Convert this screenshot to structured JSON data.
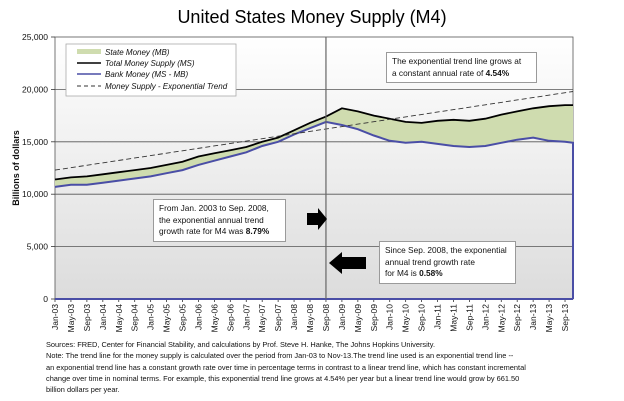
{
  "chart_data": {
    "type": "area",
    "title": "United States Money Supply (M4)",
    "xlabel": "",
    "ylabel": "Billions of dollars",
    "ylim": [
      0,
      25000
    ],
    "yticks": [
      0,
      5000,
      10000,
      15000,
      20000,
      25000
    ],
    "ytick_labels": [
      "0",
      "5,000",
      "10,000",
      "15,000",
      "20,000",
      "25,000"
    ],
    "xtick_labels": [
      "Jan-03",
      "May-03",
      "Sep-03",
      "Jan-04",
      "May-04",
      "Sep-04",
      "Jan-05",
      "May-05",
      "Sep-05",
      "Jan-06",
      "May-06",
      "Sep-06",
      "Jan-07",
      "May-07",
      "Sep-07",
      "Jan-08",
      "May-08",
      "Sep-08",
      "Jan-09",
      "May-09",
      "Sep-09",
      "Jan-10",
      "May-10",
      "Sep-10",
      "Jan-11",
      "May-11",
      "Sep-11",
      "Jan-12",
      "May-12",
      "Sep-12",
      "Jan-13",
      "May-13",
      "Sep-13"
    ],
    "x_range_months": [
      0,
      130
    ],
    "grid": "horizontal",
    "legend_position": "top-left",
    "x_months": [
      0,
      4,
      8,
      12,
      16,
      20,
      24,
      28,
      32,
      36,
      40,
      44,
      48,
      52,
      56,
      60,
      64,
      68,
      72,
      76,
      80,
      84,
      88,
      92,
      96,
      100,
      104,
      108,
      112,
      116,
      120,
      124,
      128,
      130
    ],
    "series": [
      {
        "name": "Total Money Supply (MS)",
        "color": "#000000",
        "style": "solid",
        "values": [
          11400,
          11600,
          11700,
          11900,
          12100,
          12300,
          12500,
          12800,
          13100,
          13600,
          13900,
          14200,
          14500,
          15000,
          15400,
          16100,
          16800,
          17400,
          18200,
          17900,
          17500,
          17200,
          16900,
          16800,
          17000,
          17100,
          17000,
          17200,
          17600,
          17900,
          18200,
          18400,
          18500,
          18500
        ]
      },
      {
        "name": "Bank Money (MS - MB)",
        "color": "#4a4ea6",
        "style": "solid",
        "values": [
          10700,
          10900,
          10900,
          11100,
          11300,
          11500,
          11700,
          12000,
          12300,
          12800,
          13200,
          13600,
          14000,
          14600,
          15000,
          15700,
          16300,
          16900,
          16600,
          16200,
          15600,
          15100,
          14900,
          15000,
          14800,
          14600,
          14500,
          14600,
          14900,
          15200,
          15400,
          15100,
          15000,
          14900
        ]
      },
      {
        "name": "State Money (MB)",
        "color": "#cfdcaf",
        "style": "fill-between"
      },
      {
        "name": "Money Supply - Exponential Trend",
        "color": "#333333",
        "style": "dashed",
        "start": 12300,
        "end": 19800
      }
    ],
    "vertical_marker": {
      "x_month": 68,
      "label": "Sep-08"
    },
    "annotations": [
      {
        "id": "trend",
        "text": "The exponential trend line grows at a constant annual rate of ",
        "bold": "4.54%"
      },
      {
        "id": "pre",
        "text": "From Jan. 2003 to Sep. 2008, the exponential annual trend growth rate for M4 was ",
        "bold": "8.79%"
      },
      {
        "id": "post",
        "text": "Since Sep. 2008, the exponential annual trend growth rate for M4 is ",
        "bold": "0.58%"
      }
    ]
  },
  "annotations": {
    "trend_line1": "The exponential trend line grows at",
    "trend_line2": "a constant annual rate of ",
    "trend_bold": "4.54%",
    "pre_line1": "From Jan. 2003 to Sep. 2008,",
    "pre_line2": "the exponential annual trend",
    "pre_line3": " growth rate for M4 was ",
    "pre_bold": "8.79%",
    "post_line1": "Since Sep. 2008, the exponential",
    "post_line2": "annual trend growth rate",
    "post_line3": "for M4 is ",
    "post_bold": "0.58%"
  },
  "notes": {
    "sources": "Sources: FRED, Center for Financial Stability, and calculations by Prof. Steve H. Hanke, The Johns Hopkins University.",
    "note1": "Note: The trend line for the money supply is calculated over the period from Jan-03 to Nov-13.The trend line used is an exponential trend line --",
    "note2": "an exponential trend line has a constant growth rate over time in percentage terms in contrast to a linear trend line, which has constant incremental",
    "note3": "change over time in nominal terms. For example, this exponential trend line grows at 4.54% per year but a linear trend line would grow by 661.50",
    "note4": "billion dollars per year."
  }
}
